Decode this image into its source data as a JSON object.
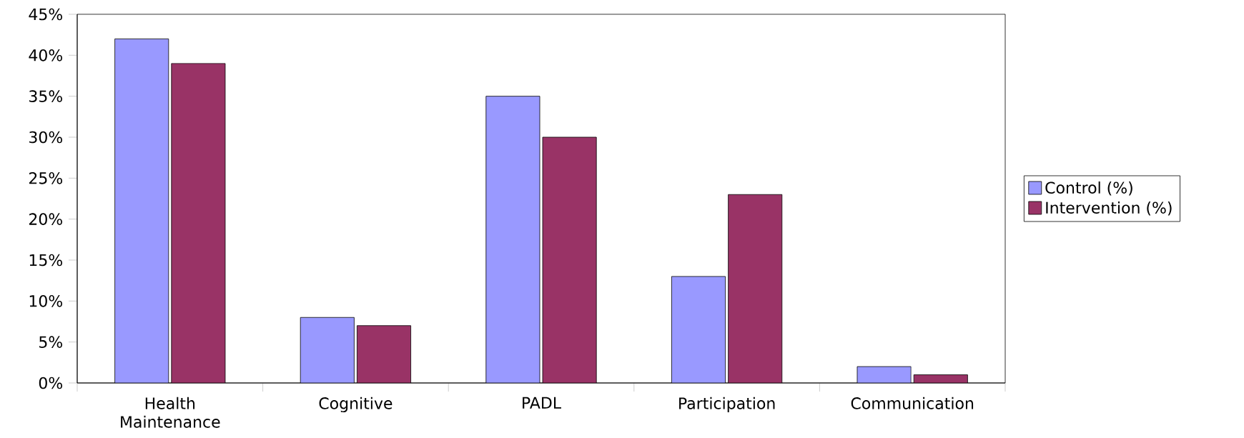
{
  "chart_data": {
    "type": "bar",
    "categories": [
      "Health Maintenance",
      "Cognitive",
      "PADL",
      "Participation",
      "Communication"
    ],
    "series": [
      {
        "name": "Control (%)",
        "color": "#9999ff",
        "values": [
          42,
          8,
          35,
          13,
          2
        ]
      },
      {
        "name": "Intervention (%)",
        "color": "#993366",
        "values": [
          39,
          7,
          30,
          23,
          1
        ]
      }
    ],
    "ylim": [
      0,
      45
    ],
    "yticks": [
      {
        "value": 0,
        "label": "0%"
      },
      {
        "value": 5,
        "label": "5%"
      },
      {
        "value": 10,
        "label": "10%"
      },
      {
        "value": 15,
        "label": "15%"
      },
      {
        "value": 20,
        "label": "20%"
      },
      {
        "value": 25,
        "label": "25%"
      },
      {
        "value": 30,
        "label": "30%"
      },
      {
        "value": 35,
        "label": "35%"
      },
      {
        "value": 40,
        "label": "40%"
      },
      {
        "value": 45,
        "label": "45%"
      }
    ],
    "grid": false,
    "legend": "right"
  }
}
